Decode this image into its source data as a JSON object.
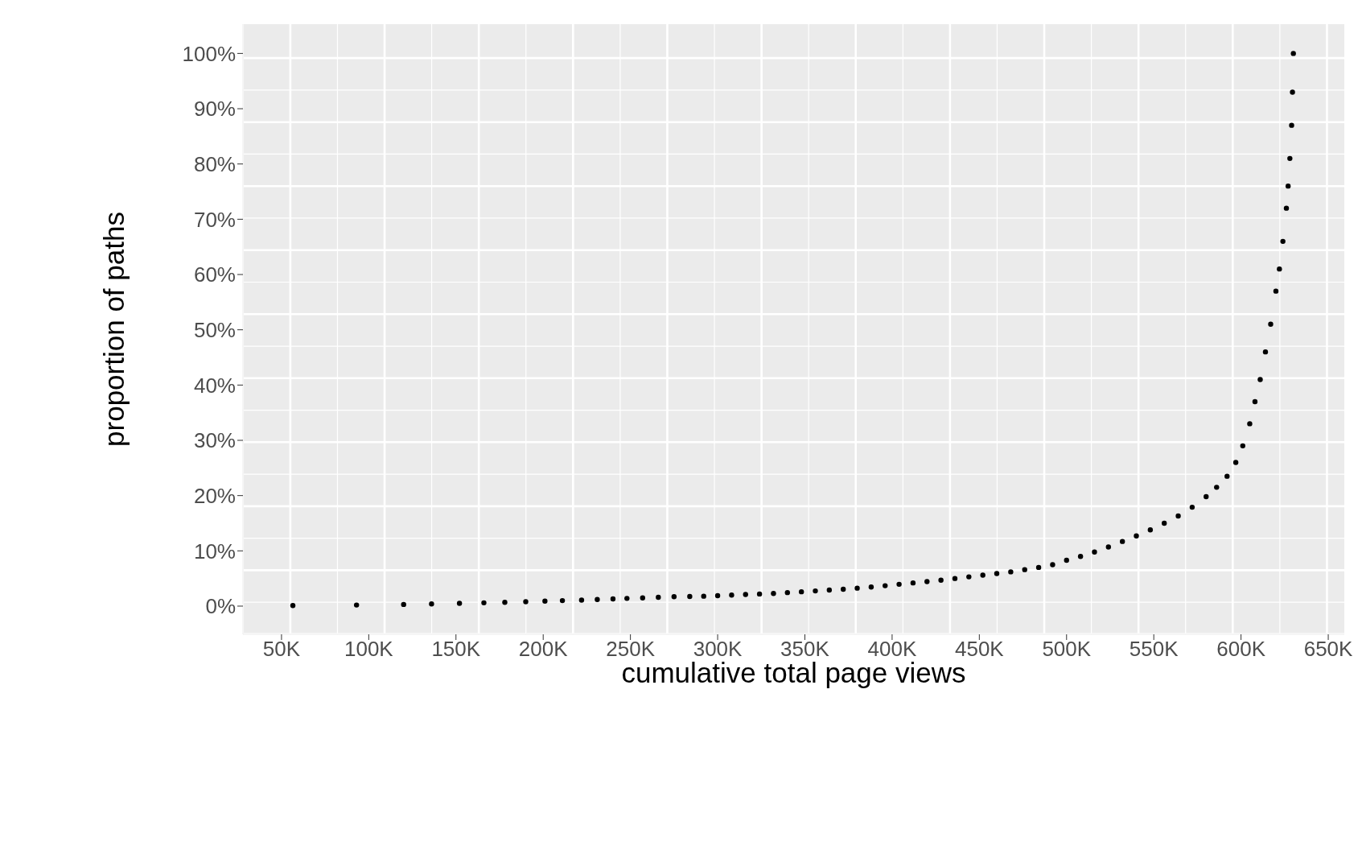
{
  "chart_data": {
    "type": "scatter",
    "xlabel": "cumulative total page views",
    "ylabel": "proportion of paths",
    "marker": "circle",
    "grid": true,
    "legend": false,
    "xlim": [
      27.9,
      659.2
    ],
    "ylim": [
      -5.1,
      105.3
    ],
    "xticks": [
      {
        "value": 50,
        "label": "50K"
      },
      {
        "value": 100,
        "label": "100K"
      },
      {
        "value": 150,
        "label": "150K"
      },
      {
        "value": 200,
        "label": "200K"
      },
      {
        "value": 250,
        "label": "250K"
      },
      {
        "value": 300,
        "label": "300K"
      },
      {
        "value": 350,
        "label": "350K"
      },
      {
        "value": 400,
        "label": "400K"
      },
      {
        "value": 450,
        "label": "450K"
      },
      {
        "value": 500,
        "label": "500K"
      },
      {
        "value": 550,
        "label": "550K"
      },
      {
        "value": 600,
        "label": "600K"
      },
      {
        "value": 650,
        "label": "650K"
      }
    ],
    "yticks": [
      {
        "value": 0,
        "label": "0%"
      },
      {
        "value": 10,
        "label": "10%"
      },
      {
        "value": 20,
        "label": "20%"
      },
      {
        "value": 30,
        "label": "30%"
      },
      {
        "value": 40,
        "label": "40%"
      },
      {
        "value": 50,
        "label": "50%"
      },
      {
        "value": 60,
        "label": "60%"
      },
      {
        "value": 70,
        "label": "70%"
      },
      {
        "value": 80,
        "label": "80%"
      },
      {
        "value": 90,
        "label": "90%"
      },
      {
        "value": 100,
        "label": "100%"
      }
    ],
    "series": [
      {
        "color": "#000000",
        "x": [
          56.5,
          93,
          120,
          136,
          152,
          166,
          178,
          190,
          201,
          211,
          222,
          231,
          240,
          248,
          257,
          266,
          275,
          284,
          292,
          300,
          308,
          316,
          324,
          332,
          340,
          348,
          356,
          364,
          372,
          380,
          388,
          396,
          404,
          412,
          420,
          428,
          436,
          444,
          452,
          460,
          468,
          476,
          484,
          492,
          500,
          508,
          516,
          524,
          532,
          540,
          548,
          556,
          564,
          572,
          580,
          586,
          592,
          597,
          601,
          605,
          608,
          611,
          614,
          617,
          620,
          622,
          624,
          626,
          627,
          628,
          629,
          629.5,
          630
        ],
        "values": [
          0.1,
          0.2,
          0.3,
          0.4,
          0.5,
          0.6,
          0.7,
          0.8,
          0.9,
          1.0,
          1.1,
          1.2,
          1.3,
          1.4,
          1.5,
          1.6,
          1.7,
          1.75,
          1.8,
          1.9,
          2.0,
          2.1,
          2.2,
          2.3,
          2.45,
          2.6,
          2.75,
          2.9,
          3.05,
          3.25,
          3.45,
          3.7,
          3.95,
          4.2,
          4.45,
          4.7,
          5.0,
          5.3,
          5.6,
          5.9,
          6.2,
          6.6,
          7.0,
          7.5,
          8.3,
          9.0,
          9.8,
          10.7,
          11.7,
          12.7,
          13.8,
          15.0,
          16.3,
          17.9,
          19.8,
          21.5,
          23.5,
          26,
          29,
          33,
          37,
          41,
          46,
          51,
          57,
          61,
          66,
          72,
          76,
          81,
          87,
          93,
          100
        ]
      }
    ]
  }
}
